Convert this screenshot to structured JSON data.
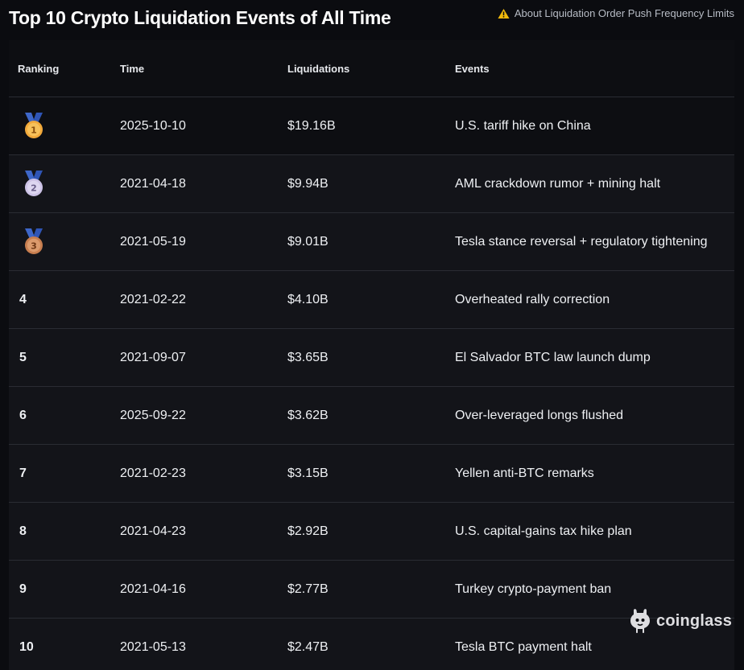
{
  "header": {
    "title": "Top 10 Crypto Liquidation Events of All Time",
    "notice_icon": "warning-triangle-icon",
    "notice_text": "About Liquidation Order Push Frequency Limits"
  },
  "table": {
    "columns": [
      "Ranking",
      "Time",
      "Liquidations",
      "Events"
    ],
    "rows": [
      {
        "rank": "1",
        "medal": "gold",
        "time": "2025-10-10",
        "liquidations": "$19.16B",
        "event": "U.S. tariff hike on China"
      },
      {
        "rank": "2",
        "medal": "silver",
        "time": "2021-04-18",
        "liquidations": "$9.94B",
        "event": "AML crackdown rumor + mining halt"
      },
      {
        "rank": "3",
        "medal": "bronze",
        "time": "2021-05-19",
        "liquidations": "$9.01B",
        "event": "Tesla stance reversal + regulatory tightening"
      },
      {
        "rank": "4",
        "time": "2021-02-22",
        "liquidations": "$4.10B",
        "event": "Overheated rally correction"
      },
      {
        "rank": "5",
        "time": "2021-09-07",
        "liquidations": "$3.65B",
        "event": "El Salvador BTC law launch dump"
      },
      {
        "rank": "6",
        "time": "2025-09-22",
        "liquidations": "$3.62B",
        "event": "Over-leveraged longs flushed"
      },
      {
        "rank": "7",
        "time": "2021-02-23",
        "liquidations": "$3.15B",
        "event": "Yellen anti-BTC remarks"
      },
      {
        "rank": "8",
        "time": "2021-04-23",
        "liquidations": "$2.92B",
        "event": "U.S. capital-gains tax hike plan"
      },
      {
        "rank": "9",
        "time": "2021-04-16",
        "liquidations": "$2.77B",
        "event": "Turkey crypto-payment ban"
      },
      {
        "rank": "10",
        "time": "2021-05-13",
        "liquidations": "$2.47B",
        "event": "Tesla BTC payment halt"
      }
    ]
  },
  "watermark": {
    "icon": "coinglass-logo-icon",
    "text": "coinglass"
  },
  "colors": {
    "background": "#0b0c10",
    "row_background": "#131419",
    "header_background": "#0d0e12",
    "divider": "#2a2c33",
    "warning": "#f0b90b",
    "ribbon": "#3e67c9",
    "gold": "#f2a93b",
    "silver": "#cdc3e6",
    "bronze": "#c87e4f"
  }
}
